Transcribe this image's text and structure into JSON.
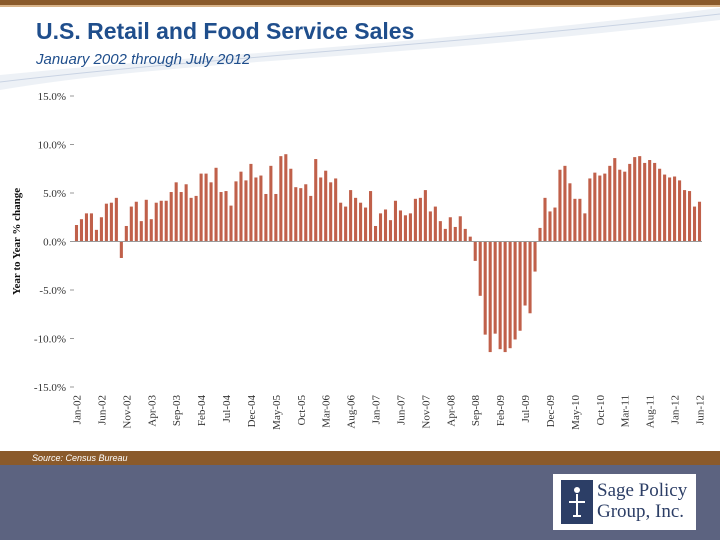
{
  "header": {
    "title": "U.S. Retail and Food Service Sales",
    "subtitle": "January 2002 through July 2012"
  },
  "footer": {
    "source": "Source:  Census Bureau",
    "logo_line1": "Sage Policy",
    "logo_line2": "Group, Inc."
  },
  "colors": {
    "bar": "#c0604a",
    "title": "#1f4e8c",
    "footer": "#5c6380",
    "accent": "#8a5a2b"
  },
  "chart_data": {
    "type": "bar",
    "title": "",
    "xlabel": "",
    "ylabel": "Year to Year % change",
    "ylim": [
      -15,
      15
    ],
    "yticks": [
      "15.0%",
      "10.0%",
      "5.0%",
      "0.0%",
      "-5.0%",
      "-10.0%",
      "-15.0%"
    ],
    "ytick_values": [
      15,
      10,
      5,
      0,
      -5,
      -10,
      -15
    ],
    "xtick_labels": [
      "Jan-02",
      "Jun-02",
      "Nov-02",
      "Apr-03",
      "Sep-03",
      "Feb-04",
      "Jul-04",
      "Dec-04",
      "May-05",
      "Oct-05",
      "Mar-06",
      "Aug-06",
      "Jan-07",
      "Jun-07",
      "Nov-07",
      "Apr-08",
      "Sep-08",
      "Feb-09",
      "Jul-09",
      "Dec-09",
      "May-10",
      "Oct-10",
      "Mar-11",
      "Aug-11",
      "Jan-12",
      "Jun-12"
    ],
    "x_start": "Jan-02",
    "x_end": "Jul-12",
    "values": [
      1.7,
      2.3,
      2.9,
      2.9,
      1.2,
      2.5,
      3.9,
      4.0,
      4.5,
      -1.7,
      1.6,
      3.6,
      4.1,
      2.1,
      4.3,
      2.3,
      4.0,
      4.2,
      4.2,
      5.1,
      6.1,
      5.1,
      5.9,
      4.5,
      4.7,
      7.0,
      7.0,
      6.1,
      7.6,
      5.1,
      5.2,
      3.7,
      6.2,
      7.2,
      6.3,
      8.0,
      6.6,
      6.8,
      4.9,
      7.8,
      4.9,
      8.8,
      9.0,
      7.5,
      5.6,
      5.5,
      5.9,
      4.7,
      8.5,
      6.6,
      7.3,
      6.1,
      6.5,
      4.0,
      3.6,
      5.3,
      4.5,
      4.0,
      3.5,
      5.2,
      1.6,
      2.9,
      3.3,
      2.2,
      4.2,
      3.2,
      2.7,
      2.9,
      4.4,
      4.5,
      5.3,
      3.1,
      3.6,
      2.1,
      1.3,
      2.5,
      1.5,
      2.6,
      1.3,
      0.5,
      -2.0,
      -5.6,
      -9.6,
      -11.4,
      -9.5,
      -11.1,
      -11.4,
      -11.0,
      -10.1,
      -9.2,
      -6.6,
      -7.4,
      -3.1,
      1.4,
      4.5,
      3.1,
      3.5,
      7.4,
      7.8,
      6.0,
      4.4,
      4.4,
      2.9,
      6.5,
      7.1,
      6.8,
      7.0,
      7.8,
      8.6,
      7.4,
      7.2,
      8.0,
      8.7,
      8.8,
      8.1,
      8.4,
      8.1,
      7.5,
      6.9,
      6.6,
      6.7,
      6.3,
      5.3,
      5.2,
      3.6,
      4.1
    ],
    "grid": false,
    "legend": "none"
  }
}
